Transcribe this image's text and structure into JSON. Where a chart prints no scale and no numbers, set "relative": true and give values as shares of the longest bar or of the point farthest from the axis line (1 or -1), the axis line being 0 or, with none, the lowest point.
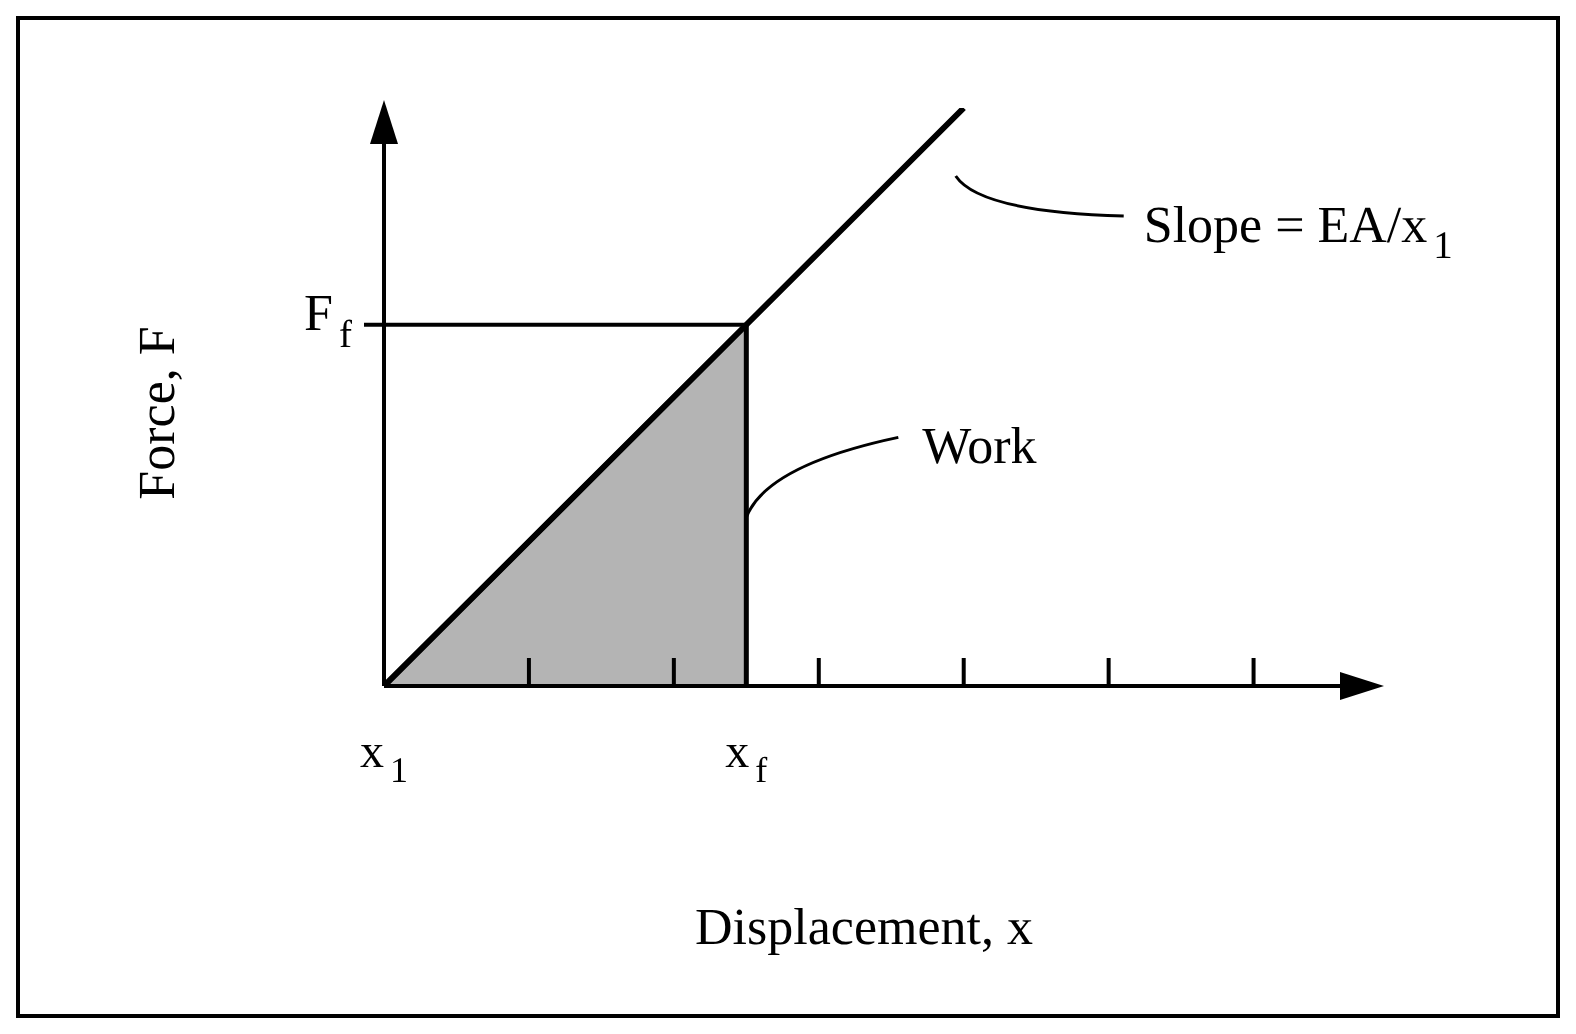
{
  "chart_data": {
    "type": "line",
    "relative": true,
    "categories": [
      "x$_{1}$",
      null,
      null,
      null,
      null,
      "x$_{f}$",
      null,
      null,
      null,
      null,
      null,
      null,
      null
    ],
    "series": [
      {
        "color": "#000000",
        "values": [
          0,
          0.125,
          0.25,
          0.375,
          0.5,
          0.625,
          0.75,
          0.875,
          1,
          null,
          null,
          null,
          null
        ]
      },
      {
        "type": "area",
        "color": "#b4b4b4",
        "values": [
          0,
          0.125,
          0.25,
          0.375,
          0.5,
          0.625,
          null,
          null,
          null,
          null,
          null,
          null,
          null
        ]
      }
    ],
    "ref_lines": [
      {
        "axis": "y",
        "value": 0.625,
        "label": "F$_{f}$"
      }
    ],
    "xlabel": "Displacement, x",
    "ylabel": "Force, F",
    "annotations": [
      "Slope = EA/x$_{1}$",
      "Work"
    ],
    "grid": false,
    "legend": false
  }
}
